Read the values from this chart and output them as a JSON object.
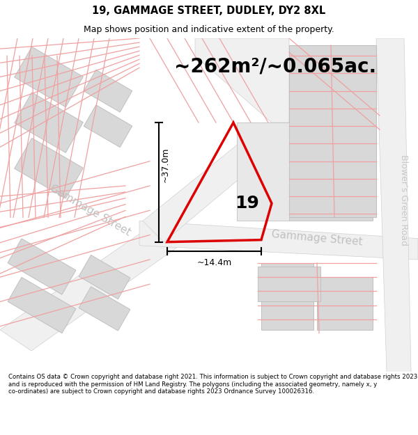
{
  "title_line1": "19, GAMMAGE STREET, DUDLEY, DY2 8XL",
  "title_line2": "Map shows position and indicative extent of the property.",
  "area_text": "~262m²/~0.065ac.",
  "label_19": "19",
  "dim_height": "~37.0m",
  "dim_width": "~14.4m",
  "street_label_left": "Gammage Street",
  "street_label_right": "Gammage Street",
  "road_label_right": "Blower’s Green Road",
  "footer_text": "Contains OS data © Crown copyright and database right 2021. This information is subject to Crown copyright and database rights 2023 and is reproduced with the permission of HM Land Registry. The polygons (including the associated geometry, namely x, y co-ordinates) are subject to Crown copyright and database rights 2023 Ordnance Survey 100026316.",
  "bg_color": "#ffffff",
  "map_bg": "#ffffff",
  "building_fill": "#d8d8d8",
  "building_edge": "#c0c0c0",
  "road_fill": "#f0f0f0",
  "road_edge": "#d0d0d0",
  "cadastral_color": "#f0a0a0",
  "red_color": "#dd0000",
  "dim_color": "#000000",
  "text_color": "#000000",
  "street_color": "#c0c0c0",
  "road_label_color": "#c8c8c8",
  "title_fontsize": 10.5,
  "subtitle_fontsize": 9,
  "area_fontsize": 20,
  "label_fontsize": 18,
  "dim_fontsize": 9,
  "street_fontsize": 11,
  "road_label_fontsize": 9,
  "footer_fontsize": 6.2
}
